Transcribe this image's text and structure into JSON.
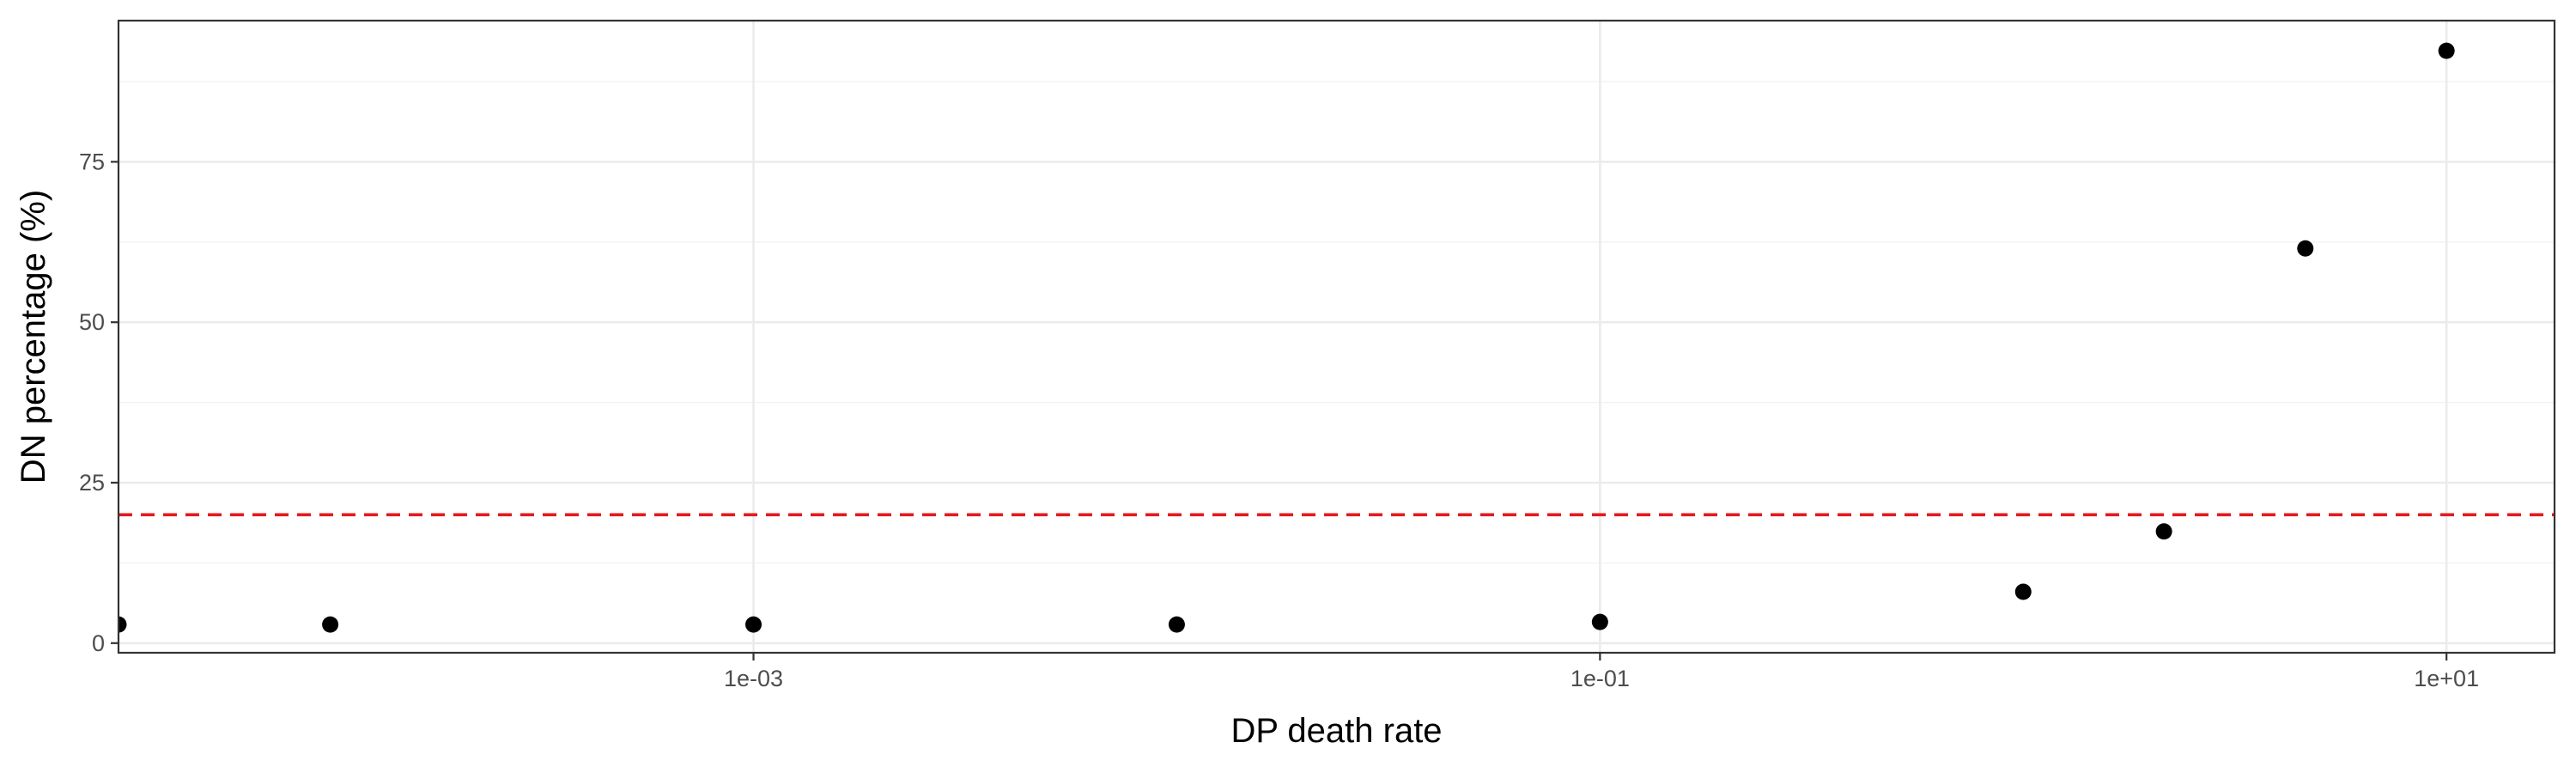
{
  "chart_data": {
    "type": "scatter",
    "xlabel": "DP death rate",
    "ylabel": "DN percentage (%)",
    "x_scale": "log10",
    "xlim": [
      3.16e-05,
      18
    ],
    "ylim": [
      -1.5,
      97
    ],
    "x_ticks": [
      {
        "value": 0.001,
        "label": "1e-03"
      },
      {
        "value": 0.1,
        "label": "1e-01"
      },
      {
        "value": 10,
        "label": "1e+01"
      }
    ],
    "y_ticks": [
      {
        "value": 0,
        "label": "0"
      },
      {
        "value": 25,
        "label": "25"
      },
      {
        "value": 50,
        "label": "50"
      },
      {
        "value": 75,
        "label": "75"
      }
    ],
    "grid": true,
    "points": [
      {
        "x": 3.16e-05,
        "y": 2.9
      },
      {
        "x": 0.0001,
        "y": 2.9
      },
      {
        "x": 0.001,
        "y": 2.9
      },
      {
        "x": 0.01,
        "y": 2.9
      },
      {
        "x": 0.1,
        "y": 3.3
      },
      {
        "x": 1,
        "y": 8.0
      },
      {
        "x": 2.15,
        "y": 17.4
      },
      {
        "x": 4.64,
        "y": 61.5
      },
      {
        "x": 10,
        "y": 92.3
      }
    ],
    "point_color": "#000000",
    "reference_line": {
      "y": 20,
      "color": "#e41a1c",
      "style": "dashed"
    }
  }
}
